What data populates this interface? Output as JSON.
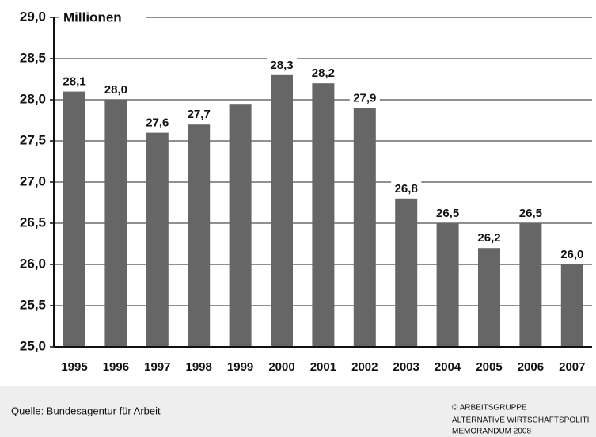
{
  "chart_data": {
    "type": "bar",
    "y_label": "Millionen",
    "categories": [
      "1995",
      "1996",
      "1997",
      "1998",
      "1999",
      "2000",
      "2001",
      "2002",
      "2003",
      "2004",
      "2005",
      "2006",
      "2007"
    ],
    "values": [
      28.1,
      28.0,
      27.6,
      27.7,
      27.95,
      28.3,
      28.2,
      27.9,
      26.8,
      26.5,
      26.2,
      26.5,
      26.0
    ],
    "value_labels": [
      "28,1",
      "28,0",
      "27,6",
      "27,7",
      null,
      "28,3",
      "28,2",
      "27,9",
      "26,8",
      "26,5",
      "26,2",
      "26,5",
      "26,0"
    ],
    "color": "#666666",
    "ylim": [
      25.0,
      29.0
    ],
    "yticks": [
      {
        "value": 25.0,
        "label": "25,0"
      },
      {
        "value": 25.5,
        "label": "25,5"
      },
      {
        "value": 26.0,
        "label": "26,0"
      },
      {
        "value": 26.5,
        "label": "26,5"
      },
      {
        "value": 27.0,
        "label": "27,0"
      },
      {
        "value": 27.5,
        "label": "27,5"
      },
      {
        "value": 28.0,
        "label": "28,0"
      },
      {
        "value": 28.5,
        "label": "28,5"
      },
      {
        "value": 29.0,
        "label": "29,0"
      }
    ],
    "grid": true,
    "source": "Quelle: Bundesagentur für Arbeit",
    "credit": [
      "© ARBEITSGRUPPE",
      "ALTERNATIVE WIRTSCHAFTSPOLITI",
      "MEMORANDUM 2008"
    ]
  }
}
